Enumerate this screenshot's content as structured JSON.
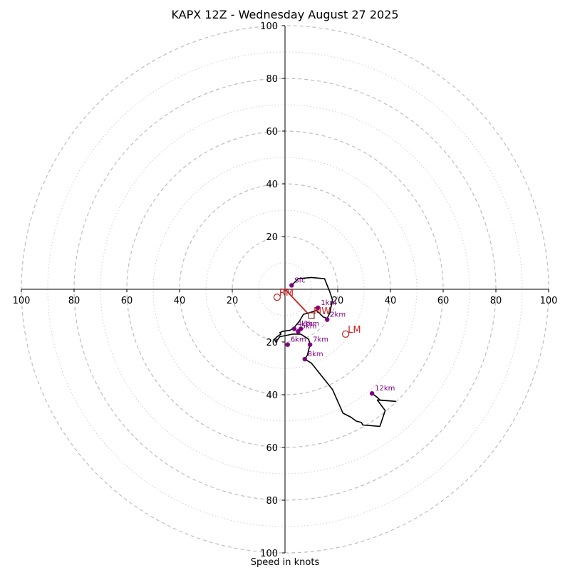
{
  "chart_data": {
    "type": "hodograph",
    "title": "KAPX 12Z - Wednesday August 27 2025",
    "xlabel": "Speed in knots",
    "range_kt": [
      -100,
      100
    ],
    "ring_step_kt": 10,
    "major_ring_step_kt": 20,
    "tick_labels_x": [
      "100",
      "80",
      "60",
      "40",
      "20",
      "20",
      "40",
      "60",
      "80",
      "100"
    ],
    "tick_values_x": [
      -100,
      -80,
      -60,
      -40,
      -20,
      20,
      40,
      60,
      80,
      100
    ],
    "tick_labels_y": [
      "100",
      "80",
      "60",
      "40",
      "20",
      "20",
      "40",
      "60",
      "80",
      "100"
    ],
    "tick_values_y": [
      100,
      80,
      60,
      40,
      20,
      -20,
      -40,
      -60,
      -80,
      -100
    ],
    "grid": true,
    "colors": {
      "trace": "#000000",
      "height_marker": "#800080",
      "motion": "#cc1f1f",
      "grid": "#bbbbbb"
    },
    "trace": [
      [
        2.5,
        1.5
      ],
      [
        5,
        4
      ],
      [
        10,
        4.5
      ],
      [
        15,
        4
      ],
      [
        17,
        -1
      ],
      [
        18,
        -4
      ],
      [
        17,
        -9
      ],
      [
        16,
        -11
      ],
      [
        14.5,
        -10.5
      ],
      [
        12,
        -8
      ],
      [
        9,
        -9
      ],
      [
        7,
        -9.5
      ],
      [
        5.5,
        -12
      ],
      [
        3.5,
        -14.5
      ],
      [
        2,
        -15.5
      ],
      [
        -1,
        -16
      ],
      [
        -2,
        -16.5
      ],
      [
        -1.5,
        -17
      ],
      [
        -3,
        -18
      ],
      [
        -4,
        -19
      ],
      [
        -3.5,
        -20
      ],
      [
        -2,
        -18
      ],
      [
        3,
        -17
      ],
      [
        6,
        -17
      ],
      [
        9,
        -19
      ],
      [
        9.5,
        -21
      ],
      [
        8.5,
        -25
      ],
      [
        7.5,
        -26.5
      ],
      [
        10,
        -28
      ],
      [
        14,
        -33
      ],
      [
        18,
        -38
      ],
      [
        22,
        -47
      ],
      [
        25,
        -48.5
      ],
      [
        27,
        -50
      ],
      [
        29,
        -50.5
      ],
      [
        29.5,
        -51.5
      ],
      [
        36,
        -52
      ],
      [
        38,
        -46
      ],
      [
        35,
        -42
      ],
      [
        42,
        -42.5
      ],
      [
        36,
        -42
      ],
      [
        35,
        -41
      ],
      [
        33,
        -39.5
      ]
    ],
    "height_markers": [
      {
        "label": "Sfc",
        "u": 2.5,
        "v": 1.5
      },
      {
        "label": "1km",
        "u": 12.5,
        "v": -7
      },
      {
        "label": "2km",
        "u": 16,
        "v": -11.5
      },
      {
        "label": "3km",
        "u": 6,
        "v": -15
      },
      {
        "label": "4km",
        "u": 3.5,
        "v": -15
      },
      {
        "label": "5km",
        "u": 5,
        "v": -16
      },
      {
        "label": "6km",
        "u": 1,
        "v": -21
      },
      {
        "label": "7km",
        "u": 9.5,
        "v": -21
      },
      {
        "label": "8km",
        "u": 7.5,
        "v": -26.5
      },
      {
        "label": "12km",
        "u": 33,
        "v": -39.5
      }
    ],
    "storm_motions": [
      {
        "label": "RM",
        "u": -3,
        "v": -3,
        "marker": "circle"
      },
      {
        "label": "LM",
        "u": 23,
        "v": -17,
        "marker": "circle"
      },
      {
        "label": "MW",
        "u": 10,
        "v": -10,
        "marker": "square"
      }
    ],
    "shear_vector": {
      "from": [
        0,
        0
      ],
      "to": [
        8.5,
        -9
      ],
      "color": "#cc1f1f"
    }
  }
}
